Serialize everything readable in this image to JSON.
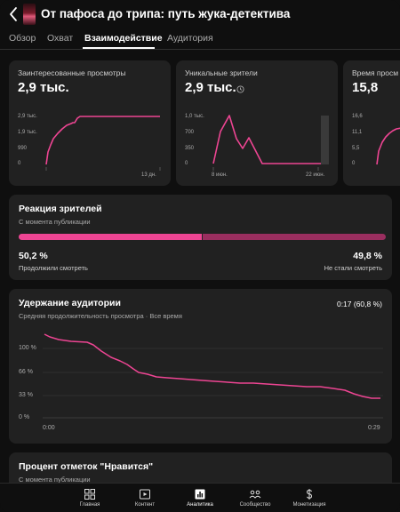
{
  "header": {
    "title": "От пафоса до трипа: путь жука-детектива",
    "tabs": [
      {
        "label": "Обзор"
      },
      {
        "label": "Охват"
      },
      {
        "label": "Взаимодействие"
      },
      {
        "label": "Аудитория"
      }
    ],
    "active_tab": "Взаимодействие"
  },
  "metrics": [
    {
      "label": "Заинтересованные просмотры",
      "value": "2,9 тыс.",
      "y_ticks": [
        "2,9 тыс.",
        "1,9 тыс.",
        "990",
        "0"
      ],
      "x_label_right": "13 дн."
    },
    {
      "label": "Уникальные зрители",
      "value": "2,9 тыс.",
      "y_ticks": [
        "1,0 тыс.",
        "700",
        "350",
        "0"
      ],
      "x_labels": [
        "8 июн.",
        "22 июн."
      ]
    },
    {
      "label": "Время просм",
      "value": "15,8",
      "y_ticks": [
        "16,6",
        "11,1",
        "5,5",
        "0"
      ]
    }
  ],
  "reaction": {
    "title": "Реакция зрителей",
    "subtitle": "С момента публикации",
    "left_pct": "50,2 %",
    "left_label": "Продолжили смотреть",
    "right_pct": "49,8 %",
    "right_label": "Не стали смотреть",
    "left_fraction": 0.502
  },
  "retention": {
    "title": "Удержание аудитории",
    "subtitle": "Средняя продолжительность просмотра · Все время",
    "summary": "0:17 (60,8 %)",
    "y_ticks": [
      "100 %",
      "66 %",
      "33 %",
      "0 %"
    ],
    "x_start": "0:00",
    "x_end": "0:29"
  },
  "likes": {
    "title": "Процент отметок \"Нравится\"",
    "subtitle": "С момента публикации"
  },
  "bottom_nav": [
    {
      "label": "Главная",
      "icon": "dashboard-icon"
    },
    {
      "label": "Контент",
      "icon": "content-icon"
    },
    {
      "label": "Аналитика",
      "icon": "analytics-icon"
    },
    {
      "label": "Сообщество",
      "icon": "community-icon"
    },
    {
      "label": "Монетизация",
      "icon": "dollar-icon"
    }
  ],
  "colors": {
    "accent": "#ee4593",
    "accent_dark": "#9a2e5f",
    "card": "#212121",
    "background": "#0f0f0f"
  }
}
